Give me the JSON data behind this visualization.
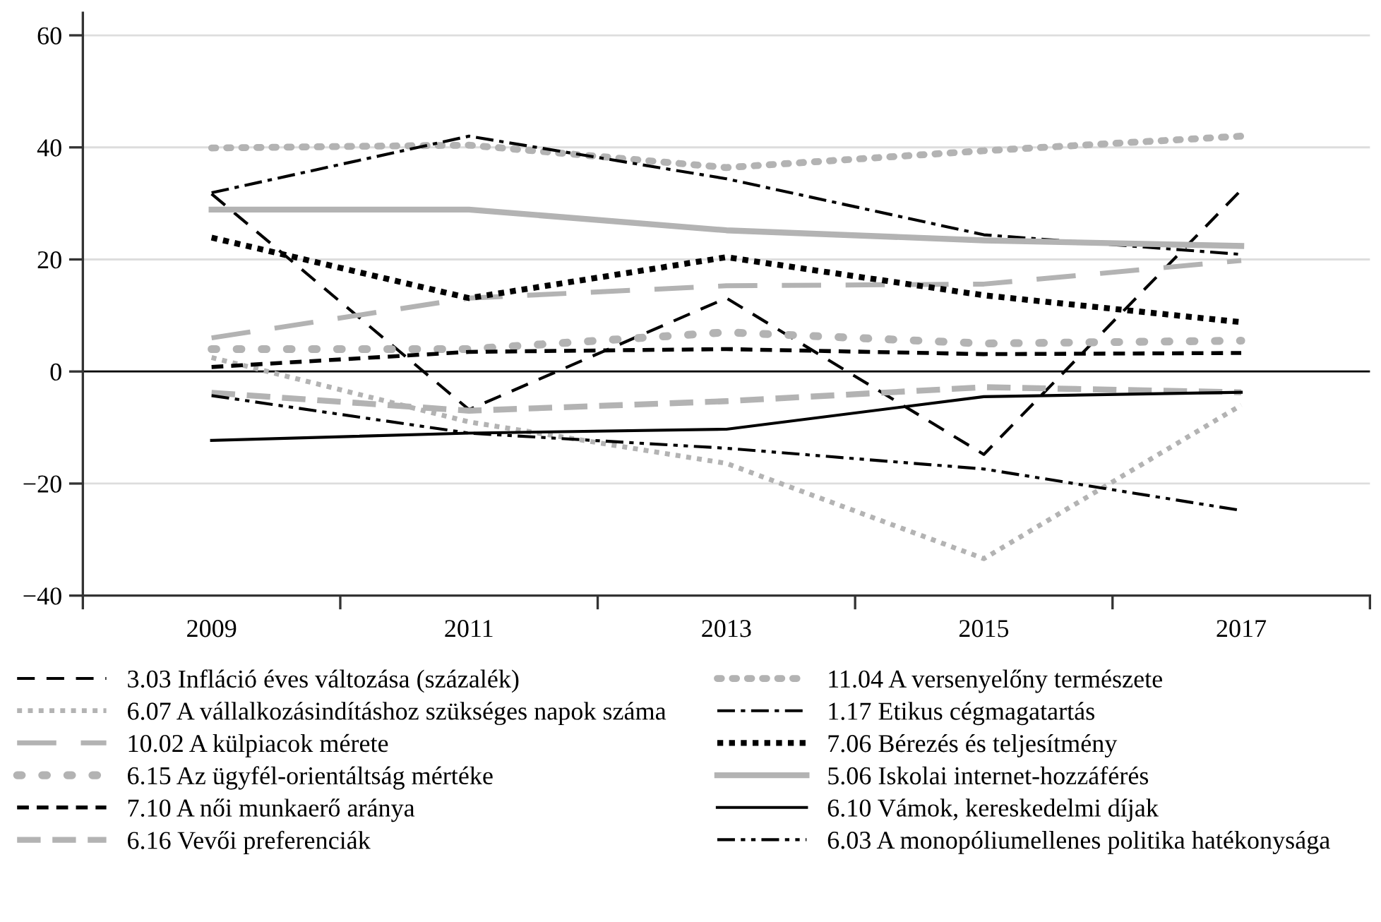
{
  "chart_data": {
    "type": "line",
    "categories": [
      "2009",
      "2011",
      "2013",
      "2015",
      "2017"
    ],
    "ylim": [
      -40,
      64
    ],
    "yticks": [
      -40,
      -20,
      0,
      20,
      40,
      60
    ],
    "grid": "y",
    "legend": "bottom",
    "marker": "none",
    "ref_lines": [
      {
        "axis": "y",
        "value": 0,
        "color": "#000000"
      }
    ],
    "series": [
      {
        "name": "3.03 Infláció éves változása (százalék)",
        "color": "#000000",
        "line_style": "dashed",
        "values": [
          31.7,
          -6.8,
          13.1,
          -14.8,
          32.4
        ]
      },
      {
        "name": "6.07 A vállalkozásindításhoz szükséges napok száma",
        "color": "#b3b3b3",
        "line_style": "dotted",
        "values": [
          2.5,
          -9,
          -16.4,
          -33.4,
          -6
        ]
      },
      {
        "name": "10.02 A külpiacok mérete",
        "color": "#b3b3b3",
        "line_style": "long-dashed",
        "values": [
          6,
          13.1,
          15.3,
          15.6,
          19.8
        ]
      },
      {
        "name": "6.15 Az ügyfél-orientáltság mértéke",
        "color": "#b3b3b3",
        "line_style": "round-dotted-sparse",
        "values": [
          4,
          4,
          7,
          5,
          5.5
        ]
      },
      {
        "name": "7.10 A női munkaerő aránya",
        "color": "#000000",
        "line_style": "short-dashed",
        "values": [
          0.8,
          3.5,
          4,
          3.1,
          3.3
        ]
      },
      {
        "name": "6.16 Vevői preferenciák",
        "color": "#b3b3b3",
        "line_style": "short-dashed-thick",
        "values": [
          -3.8,
          -7,
          -5.3,
          -2.8,
          -3.7
        ]
      },
      {
        "name": "11.04 A versenyelőny természete",
        "color": "#b3b3b3",
        "line_style": "round-dotted",
        "values": [
          39.9,
          40.4,
          36.4,
          39.4,
          42
        ]
      },
      {
        "name": "1.17 Etikus cégmagatartás",
        "color": "#000000",
        "line_style": "dashdot",
        "values": [
          31.9,
          42,
          34.4,
          24.4,
          20.9
        ]
      },
      {
        "name": "7.06 Bérezés és teljesítmény",
        "color": "#000000",
        "line_style": "dotted-thick",
        "values": [
          23.9,
          13.1,
          20.4,
          13.6,
          8.8
        ]
      },
      {
        "name": "5.06 Iskolai internet-hozzáférés",
        "color": "#b3b3b3",
        "line_style": "solid",
        "values": [
          28.9,
          28.9,
          25.2,
          23.4,
          22.4
        ]
      },
      {
        "name": "6.10 Vámok, kereskedelmi díjak",
        "color": "#000000",
        "line_style": "solid",
        "values": [
          -12.3,
          -11,
          -10.3,
          -4.5,
          -3.7
        ]
      },
      {
        "name": "6.03 A monopóliumellenes politika hatékonysága",
        "color": "#000000",
        "line_style": "dashdotdot",
        "values": [
          -4.3,
          -11,
          -13.7,
          -17.4,
          -24.8
        ]
      }
    ]
  }
}
